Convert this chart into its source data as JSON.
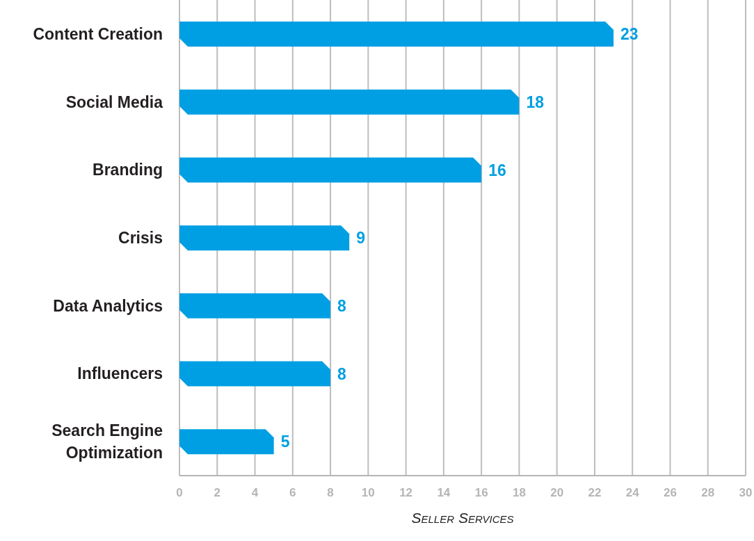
{
  "chart_data": {
    "type": "bar",
    "orientation": "horizontal",
    "xlabel": "Seller Services",
    "categories": [
      "Content Creation",
      "Social Media",
      "Branding",
      "Crisis",
      "Data Analytics",
      "Influencers",
      "Search Engine Optimization"
    ],
    "values": [
      23,
      18,
      16,
      9,
      8,
      8,
      5
    ],
    "color": "#009fe3",
    "xlim": [
      0,
      30
    ],
    "xticks": [
      0,
      2,
      4,
      6,
      8,
      10,
      12,
      14,
      16,
      18,
      20,
      22,
      24,
      26,
      28,
      30
    ],
    "grid": "x",
    "data_labels": true,
    "legend": false
  }
}
